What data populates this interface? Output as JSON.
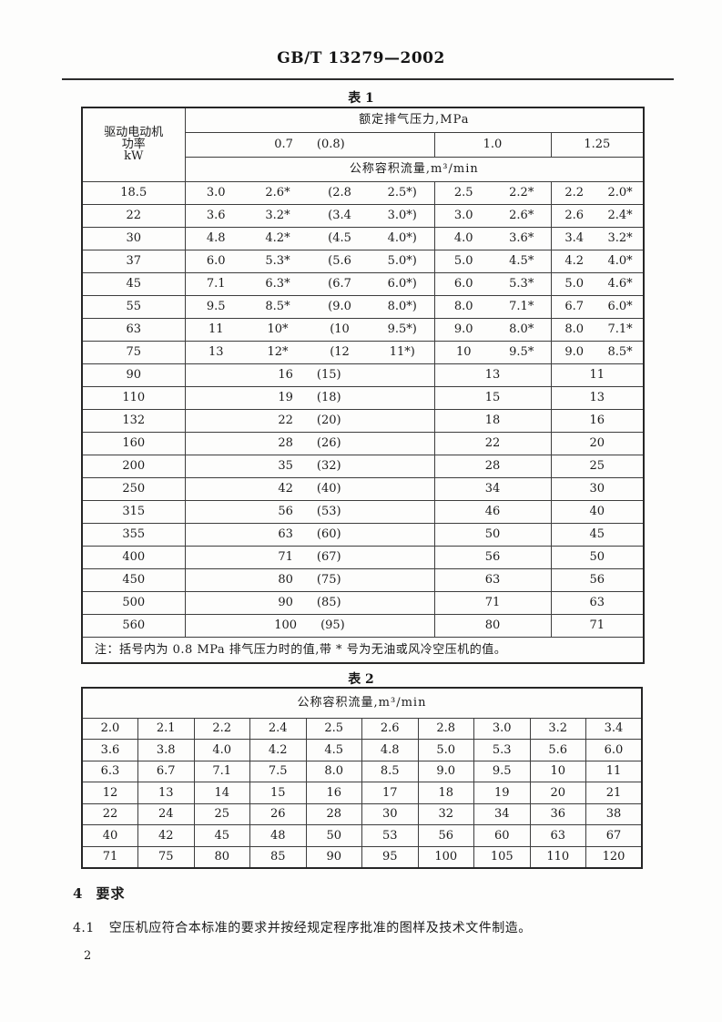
{
  "page": {
    "doc_number": "GB/T 13279—2002",
    "section_heading_num": "4",
    "section_heading_text": "要求",
    "clause_num": "4.1",
    "clause_text": "空压机应符合本标准的要求并按经规定程序批准的图样及技术文件制造。",
    "page_number": "2"
  },
  "table1": {
    "title": "表 1",
    "header": {
      "power_label_lines": [
        "驱动电动机",
        "功率",
        "kW"
      ],
      "pressure_label": "额定排气压力,MPa",
      "pressure_07": "0.7",
      "pressure_08": "(0.8)",
      "pressure_10": "1.0",
      "pressure_125": "1.25",
      "flow_label": "公称容积流量,m³/min"
    },
    "rows": [
      {
        "power": "18.5",
        "g1": [
          "3.0",
          "2.6*",
          "(2.8",
          "2.5*)"
        ],
        "g2": [
          "2.5",
          "2.2*"
        ],
        "g3": [
          "2.2",
          "2.0*"
        ]
      },
      {
        "power": "22",
        "g1": [
          "3.6",
          "3.2*",
          "(3.4",
          "3.0*)"
        ],
        "g2": [
          "3.0",
          "2.6*"
        ],
        "g3": [
          "2.6",
          "2.4*"
        ]
      },
      {
        "power": "30",
        "g1": [
          "4.8",
          "4.2*",
          "(4.5",
          "4.0*)"
        ],
        "g2": [
          "4.0",
          "3.6*"
        ],
        "g3": [
          "3.4",
          "3.2*"
        ]
      },
      {
        "power": "37",
        "g1": [
          "6.0",
          "5.3*",
          "(5.6",
          "5.0*)"
        ],
        "g2": [
          "5.0",
          "4.5*"
        ],
        "g3": [
          "4.2",
          "4.0*"
        ]
      },
      {
        "power": "45",
        "g1": [
          "7.1",
          "6.3*",
          "(6.7",
          "6.0*)"
        ],
        "g2": [
          "6.0",
          "5.3*"
        ],
        "g3": [
          "5.0",
          "4.6*"
        ]
      },
      {
        "power": "55",
        "g1": [
          "9.5",
          "8.5*",
          "(9.0",
          "8.0*)"
        ],
        "g2": [
          "8.0",
          "7.1*"
        ],
        "g3": [
          "6.7",
          "6.0*"
        ]
      },
      {
        "power": "63",
        "g1": [
          "11",
          "10*",
          "(10",
          "9.5*)"
        ],
        "g2": [
          "9.0",
          "8.0*"
        ],
        "g3": [
          "8.0",
          "7.1*"
        ]
      },
      {
        "power": "75",
        "g1": [
          "13",
          "12*",
          "(12",
          "11*)"
        ],
        "g2": [
          "10",
          "9.5*"
        ],
        "g3": [
          "9.0",
          "8.5*"
        ]
      },
      {
        "power": "90",
        "pair": [
          "16",
          "(15)"
        ],
        "v10": "13",
        "v125": "11"
      },
      {
        "power": "110",
        "pair": [
          "19",
          "(18)"
        ],
        "v10": "15",
        "v125": "13"
      },
      {
        "power": "132",
        "pair": [
          "22",
          "(20)"
        ],
        "v10": "18",
        "v125": "16"
      },
      {
        "power": "160",
        "pair": [
          "28",
          "(26)"
        ],
        "v10": "22",
        "v125": "20"
      },
      {
        "power": "200",
        "pair": [
          "35",
          "(32)"
        ],
        "v10": "28",
        "v125": "25"
      },
      {
        "power": "250",
        "pair": [
          "42",
          "(40)"
        ],
        "v10": "34",
        "v125": "30"
      },
      {
        "power": "315",
        "pair": [
          "56",
          "(53)"
        ],
        "v10": "46",
        "v125": "40"
      },
      {
        "power": "355",
        "pair": [
          "63",
          "(60)"
        ],
        "v10": "50",
        "v125": "45"
      },
      {
        "power": "400",
        "pair": [
          "71",
          "(67)"
        ],
        "v10": "56",
        "v125": "50"
      },
      {
        "power": "450",
        "pair": [
          "80",
          "(75)"
        ],
        "v10": "63",
        "v125": "56"
      },
      {
        "power": "500",
        "pair": [
          "90",
          "(85)"
        ],
        "v10": "71",
        "v125": "63"
      },
      {
        "power": "560",
        "pair": [
          "100",
          "(95)"
        ],
        "v10": "80",
        "v125": "71"
      }
    ],
    "note": "注：括号内为 0.8 MPa 排气压力时的值,带 * 号为无油或风冷空压机的值。"
  },
  "table2": {
    "title": "表 2",
    "header": "公称容积流量,m³/min",
    "rows": [
      [
        "2.0",
        "2.1",
        "2.2",
        "2.4",
        "2.5",
        "2.6",
        "2.8",
        "3.0",
        "3.2",
        "3.4"
      ],
      [
        "3.6",
        "3.8",
        "4.0",
        "4.2",
        "4.5",
        "4.8",
        "5.0",
        "5.3",
        "5.6",
        "6.0"
      ],
      [
        "6.3",
        "6.7",
        "7.1",
        "7.5",
        "8.0",
        "8.5",
        "9.0",
        "9.5",
        "10",
        "11"
      ],
      [
        "12",
        "13",
        "14",
        "15",
        "16",
        "17",
        "18",
        "19",
        "20",
        "21"
      ],
      [
        "22",
        "24",
        "25",
        "26",
        "28",
        "30",
        "32",
        "34",
        "36",
        "38"
      ],
      [
        "40",
        "42",
        "45",
        "48",
        "50",
        "53",
        "56",
        "60",
        "63",
        "67"
      ],
      [
        "71",
        "75",
        "80",
        "85",
        "90",
        "95",
        "100",
        "105",
        "110",
        "120"
      ]
    ]
  }
}
